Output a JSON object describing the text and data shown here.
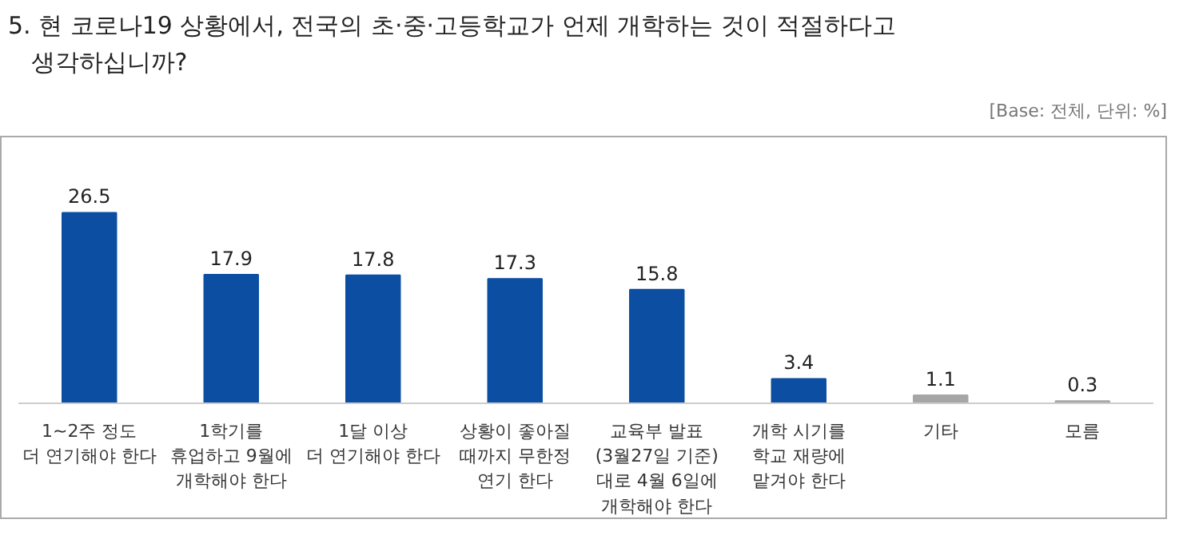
{
  "chart_data": {
    "type": "bar",
    "title": "5. 현 코로나19 상황에서, 전국의 초·중·고등학교가 언제 개학하는 것이 적절하다고 생각하십니까?",
    "subtitle": "[Base: 전체, 단위: %]",
    "categories": [
      "1~2주 정도\n더 연기해야 한다",
      "1학기를\n휴업하고 9월에\n개학해야 한다",
      "1달 이상\n더 연기해야 한다",
      "상황이 좋아질\n때까지 무한정\n연기 한다",
      "교육부 발표\n(3월27일 기준)\n대로 4월 6일에\n개학해야 한다",
      "개학 시기를\n학교 재량에\n맡겨야 한다",
      "기타",
      "모름"
    ],
    "values": [
      26.5,
      17.9,
      17.8,
      17.3,
      15.8,
      3.4,
      1.1,
      0.3
    ],
    "colors": [
      "#0b4ea2",
      "#0b4ea2",
      "#0b4ea2",
      "#0b4ea2",
      "#0b4ea2",
      "#0b4ea2",
      "#a6a6a6",
      "#a6a6a6"
    ],
    "data_labels": true,
    "grid": false
  }
}
